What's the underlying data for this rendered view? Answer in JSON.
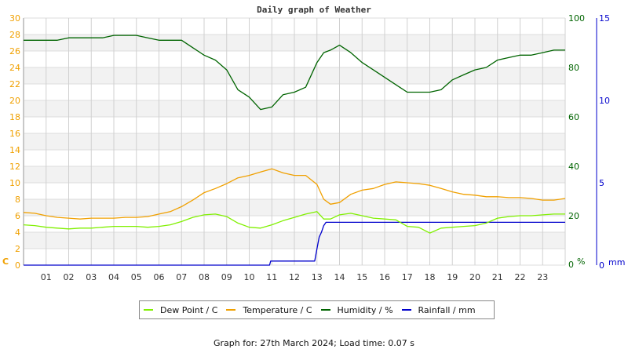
{
  "chart_data": {
    "type": "line",
    "title": "Daily graph of Weather",
    "xlabel": "",
    "x_ticks": [
      "01",
      "02",
      "03",
      "04",
      "05",
      "06",
      "07",
      "08",
      "09",
      "10",
      "11",
      "12",
      "13",
      "14",
      "15",
      "16",
      "17",
      "18",
      "19",
      "20",
      "21",
      "22",
      "23"
    ],
    "x_range": [
      0,
      24
    ],
    "axes": {
      "left": {
        "label": "C",
        "ticks": [
          0,
          2,
          4,
          6,
          8,
          10,
          12,
          14,
          16,
          18,
          20,
          22,
          24,
          26,
          28,
          30
        ],
        "range": [
          0,
          30
        ],
        "color": "#f0a000"
      },
      "right_humidity": {
        "label": "%",
        "ticks": [
          0,
          20,
          40,
          60,
          80,
          100
        ],
        "range": [
          0,
          100
        ],
        "color": "#006400"
      },
      "right_rain": {
        "label": "mm",
        "ticks": [
          0,
          5,
          10,
          15
        ],
        "range": [
          0,
          15
        ],
        "color": "#0000cc"
      }
    },
    "grid": true,
    "legend_position": "bottom",
    "series": [
      {
        "name": "Dew Point / C",
        "axis": "left",
        "color": "#80f000",
        "x": [
          0,
          0.5,
          1,
          1.5,
          2,
          2.5,
          3,
          3.5,
          4,
          4.5,
          5,
          5.5,
          6,
          6.5,
          7,
          7.5,
          8,
          8.5,
          9,
          9.5,
          10,
          10.5,
          11,
          11.5,
          12,
          12.5,
          13,
          13.3,
          13.6,
          14,
          14.5,
          15,
          15.5,
          16,
          16.5,
          17,
          17.5,
          18,
          18.5,
          19,
          19.5,
          20,
          20.5,
          21,
          21.5,
          22,
          22.5,
          23,
          23.5,
          24
        ],
        "values": [
          4.9,
          4.8,
          4.6,
          4.5,
          4.4,
          4.5,
          4.5,
          4.6,
          4.7,
          4.7,
          4.7,
          4.6,
          4.7,
          4.9,
          5.3,
          5.8,
          6.1,
          6.2,
          5.9,
          5.1,
          4.6,
          4.5,
          4.9,
          5.4,
          5.8,
          6.2,
          6.5,
          5.6,
          5.6,
          6.1,
          6.3,
          6.0,
          5.7,
          5.6,
          5.5,
          4.7,
          4.6,
          3.9,
          4.5,
          4.6,
          4.7,
          4.8,
          5.1,
          5.7,
          5.9,
          6.0,
          6.0,
          6.1,
          6.2,
          6.2
        ]
      },
      {
        "name": "Temperature / C",
        "axis": "left",
        "color": "#f0a000",
        "x": [
          0,
          0.5,
          1,
          1.5,
          2,
          2.5,
          3,
          3.5,
          4,
          4.5,
          5,
          5.5,
          6,
          6.5,
          7,
          7.5,
          8,
          8.5,
          9,
          9.5,
          10,
          10.5,
          11,
          11.5,
          12,
          12.5,
          13,
          13.3,
          13.6,
          14,
          14.5,
          15,
          15.5,
          16,
          16.5,
          17,
          17.5,
          18,
          18.5,
          19,
          19.5,
          20,
          20.5,
          21,
          21.5,
          22,
          22.5,
          23,
          23.5,
          24
        ],
        "values": [
          6.4,
          6.3,
          6.0,
          5.8,
          5.7,
          5.6,
          5.7,
          5.7,
          5.7,
          5.8,
          5.8,
          5.9,
          6.2,
          6.5,
          7.1,
          7.9,
          8.8,
          9.3,
          9.9,
          10.6,
          10.9,
          11.3,
          11.7,
          11.2,
          10.9,
          10.9,
          9.8,
          8.0,
          7.4,
          7.6,
          8.6,
          9.1,
          9.3,
          9.8,
          10.1,
          10.0,
          9.9,
          9.7,
          9.3,
          8.9,
          8.6,
          8.5,
          8.3,
          8.3,
          8.2,
          8.2,
          8.1,
          7.9,
          7.9,
          8.1
        ]
      },
      {
        "name": "Humidity / %",
        "axis": "right_humidity",
        "color": "#006400",
        "x": [
          0,
          0.5,
          1,
          1.5,
          2,
          2.5,
          3,
          3.5,
          4,
          4.5,
          5,
          5.5,
          6,
          6.5,
          7,
          7.5,
          8,
          8.5,
          9,
          9.5,
          10,
          10.5,
          11,
          11.5,
          12,
          12.5,
          13,
          13.3,
          13.6,
          14,
          14.5,
          15,
          15.5,
          16,
          16.5,
          17,
          17.5,
          18,
          18.5,
          19,
          19.5,
          20,
          20.5,
          21,
          21.5,
          22,
          22.5,
          23,
          23.5,
          24
        ],
        "values": [
          91,
          91,
          91,
          91,
          92,
          92,
          92,
          92,
          93,
          93,
          93,
          92,
          91,
          91,
          91,
          88,
          85,
          83,
          79,
          71,
          68,
          63,
          64,
          69,
          70,
          72,
          82,
          86,
          87,
          89,
          86,
          82,
          79,
          76,
          73,
          70,
          70,
          70,
          71,
          75,
          77,
          79,
          80,
          83,
          84,
          85,
          85,
          86,
          87,
          87
        ]
      },
      {
        "name": "Rainfall / mm",
        "axis": "right_rain",
        "color": "#0000cc",
        "x": [
          0,
          10.9,
          10.95,
          12.9,
          13.0,
          13.1,
          13.2,
          13.3,
          13.4,
          24
        ],
        "values": [
          0,
          0,
          0.25,
          0.25,
          1.0,
          1.7,
          2.0,
          2.4,
          2.6,
          2.6
        ]
      }
    ]
  },
  "header": {
    "title": "Daily graph of Weather"
  },
  "axis_labels": {
    "left_unit": "C",
    "humidity_unit": "%",
    "rain_unit": "mm"
  },
  "legend": {
    "items": [
      {
        "label": "Dew Point / C",
        "color": "#80f000"
      },
      {
        "label": "Temperature / C",
        "color": "#f0a000"
      },
      {
        "label": "Humidity / %",
        "color": "#006400"
      },
      {
        "label": "Rainfall / mm",
        "color": "#0000cc"
      }
    ]
  },
  "footer": {
    "text": "Graph for: 27th March 2024; Load time: 0.07 s"
  }
}
